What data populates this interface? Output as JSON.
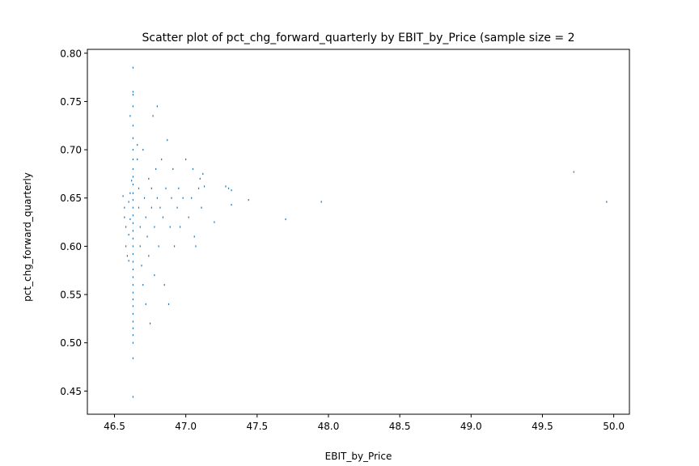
{
  "chart_data": {
    "type": "scatter",
    "title": "Scatter plot of pct_chg_forward_quarterly by EBIT_by_Price (sample size = 2",
    "xlabel": "EBIT_by_Price",
    "ylabel": "pct_chg_forward_quarterly",
    "xlim": [
      46.31,
      50.11
    ],
    "ylim": [
      0.426,
      0.804
    ],
    "xticks": [
      46.5,
      47.0,
      47.5,
      48.0,
      48.5,
      49.0,
      49.5,
      50.0
    ],
    "xtick_labels": [
      "46.5",
      "47.0",
      "47.5",
      "48.0",
      "48.5",
      "49.0",
      "49.5",
      "50.0"
    ],
    "yticks": [
      0.45,
      0.5,
      0.55,
      0.6,
      0.65,
      0.7,
      0.75,
      0.8
    ],
    "ytick_labels": [
      "0.45",
      "0.50",
      "0.55",
      "0.60",
      "0.65",
      "0.70",
      "0.75",
      "0.80"
    ],
    "grid": false,
    "marker_color": "#1f77b4",
    "series": [
      {
        "points": [
          [
            46.63,
            0.785
          ],
          [
            46.63,
            0.76
          ],
          [
            46.63,
            0.757
          ],
          [
            46.63,
            0.745
          ],
          [
            46.63,
            0.725
          ],
          [
            46.63,
            0.712
          ],
          [
            46.63,
            0.7
          ],
          [
            46.63,
            0.69
          ],
          [
            46.63,
            0.68
          ],
          [
            46.63,
            0.672
          ],
          [
            46.63,
            0.664
          ],
          [
            46.63,
            0.655
          ],
          [
            46.63,
            0.648
          ],
          [
            46.63,
            0.64
          ],
          [
            46.63,
            0.632
          ],
          [
            46.63,
            0.624
          ],
          [
            46.63,
            0.616
          ],
          [
            46.63,
            0.608
          ],
          [
            46.63,
            0.6
          ],
          [
            46.63,
            0.592
          ],
          [
            46.63,
            0.584
          ],
          [
            46.63,
            0.576
          ],
          [
            46.63,
            0.568
          ],
          [
            46.63,
            0.56
          ],
          [
            46.63,
            0.552
          ],
          [
            46.63,
            0.545
          ],
          [
            46.63,
            0.538
          ],
          [
            46.63,
            0.53
          ],
          [
            46.63,
            0.522
          ],
          [
            46.63,
            0.515
          ],
          [
            46.63,
            0.508
          ],
          [
            46.63,
            0.5
          ],
          [
            46.63,
            0.484
          ],
          [
            46.63,
            0.444
          ],
          [
            46.56,
            0.652
          ],
          [
            46.57,
            0.64
          ],
          [
            46.57,
            0.63
          ],
          [
            46.58,
            0.62
          ],
          [
            46.58,
            0.6
          ],
          [
            46.59,
            0.59
          ],
          [
            46.6,
            0.646
          ],
          [
            46.6,
            0.612
          ],
          [
            46.6,
            0.585
          ],
          [
            46.61,
            0.735
          ],
          [
            46.61,
            0.655
          ],
          [
            46.61,
            0.628
          ],
          [
            46.62,
            0.668
          ],
          [
            46.66,
            0.705
          ],
          [
            46.66,
            0.69
          ],
          [
            46.67,
            0.66
          ],
          [
            46.67,
            0.64
          ],
          [
            46.68,
            0.62
          ],
          [
            46.68,
            0.6
          ],
          [
            46.69,
            0.58
          ],
          [
            46.7,
            0.56
          ],
          [
            46.7,
            0.7
          ],
          [
            46.71,
            0.65
          ],
          [
            46.72,
            0.63
          ],
          [
            46.72,
            0.54
          ],
          [
            46.73,
            0.61
          ],
          [
            46.74,
            0.67
          ],
          [
            46.74,
            0.59
          ],
          [
            46.75,
            0.52
          ],
          [
            46.76,
            0.66
          ],
          [
            46.76,
            0.64
          ],
          [
            46.77,
            0.735
          ],
          [
            46.78,
            0.62
          ],
          [
            46.78,
            0.57
          ],
          [
            46.79,
            0.68
          ],
          [
            46.8,
            0.65
          ],
          [
            46.8,
            0.745
          ],
          [
            46.81,
            0.6
          ],
          [
            46.82,
            0.64
          ],
          [
            46.83,
            0.69
          ],
          [
            46.84,
            0.63
          ],
          [
            46.85,
            0.56
          ],
          [
            46.86,
            0.66
          ],
          [
            46.87,
            0.71
          ],
          [
            46.88,
            0.54
          ],
          [
            46.89,
            0.62
          ],
          [
            46.9,
            0.65
          ],
          [
            46.91,
            0.68
          ],
          [
            46.92,
            0.6
          ],
          [
            46.94,
            0.64
          ],
          [
            46.95,
            0.66
          ],
          [
            46.96,
            0.62
          ],
          [
            46.98,
            0.65
          ],
          [
            47.0,
            0.69
          ],
          [
            47.02,
            0.63
          ],
          [
            47.04,
            0.65
          ],
          [
            47.05,
            0.68
          ],
          [
            47.06,
            0.61
          ],
          [
            47.07,
            0.6
          ],
          [
            47.09,
            0.66
          ],
          [
            47.1,
            0.67
          ],
          [
            47.11,
            0.64
          ],
          [
            47.12,
            0.675
          ],
          [
            47.13,
            0.662
          ],
          [
            47.2,
            0.625
          ],
          [
            47.28,
            0.662
          ],
          [
            47.3,
            0.66
          ],
          [
            47.32,
            0.658
          ],
          [
            47.32,
            0.643
          ],
          [
            47.44,
            0.648
          ],
          [
            47.7,
            0.628
          ],
          [
            47.95,
            0.646
          ],
          [
            49.72,
            0.677
          ],
          [
            49.95,
            0.646
          ]
        ]
      }
    ]
  }
}
